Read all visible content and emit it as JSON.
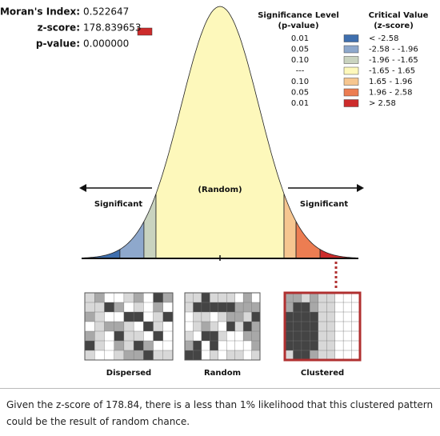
{
  "stats": [
    {
      "label": "Moran's Index:",
      "value": "0.522647"
    },
    {
      "label": "z-score:",
      "value": "178.839653"
    },
    {
      "label": "p-value:",
      "value": "0.000000"
    }
  ],
  "legend": {
    "significance_header": "Significance Level",
    "significance_sub": "(p-value)",
    "critical_header": "Critical Value",
    "critical_sub": "(z-score)",
    "rows": [
      {
        "p": "0.01",
        "color": "#3f6fae",
        "z": "< -2.58"
      },
      {
        "p": "0.05",
        "color": "#8ea8cc",
        "z": "-2.58 - -1.96"
      },
      {
        "p": "0.10",
        "color": "#c9d3bf",
        "z": "-1.96 - -1.65"
      },
      {
        "p": "---",
        "color": "#fdf8bb",
        "z": "-1.65 - 1.65"
      },
      {
        "p": "0.10",
        "color": "#f6c690",
        "z": "1.65 - 1.96"
      },
      {
        "p": "0.05",
        "color": "#ec7d52",
        "z": "1.96 - 2.58"
      },
      {
        "p": "0.01",
        "color": "#cd2b2b",
        "z": "> 2.58"
      }
    ]
  },
  "curve": {
    "center_label": "(Random)",
    "left_label": "Significant",
    "right_label": "Significant"
  },
  "patterns": [
    "Dispersed",
    "Random",
    "Clustered"
  ],
  "caption": "Given the z-score of 178.84, there is a less than 1% likelihood that this clustered pattern could be the result of random chance."
}
